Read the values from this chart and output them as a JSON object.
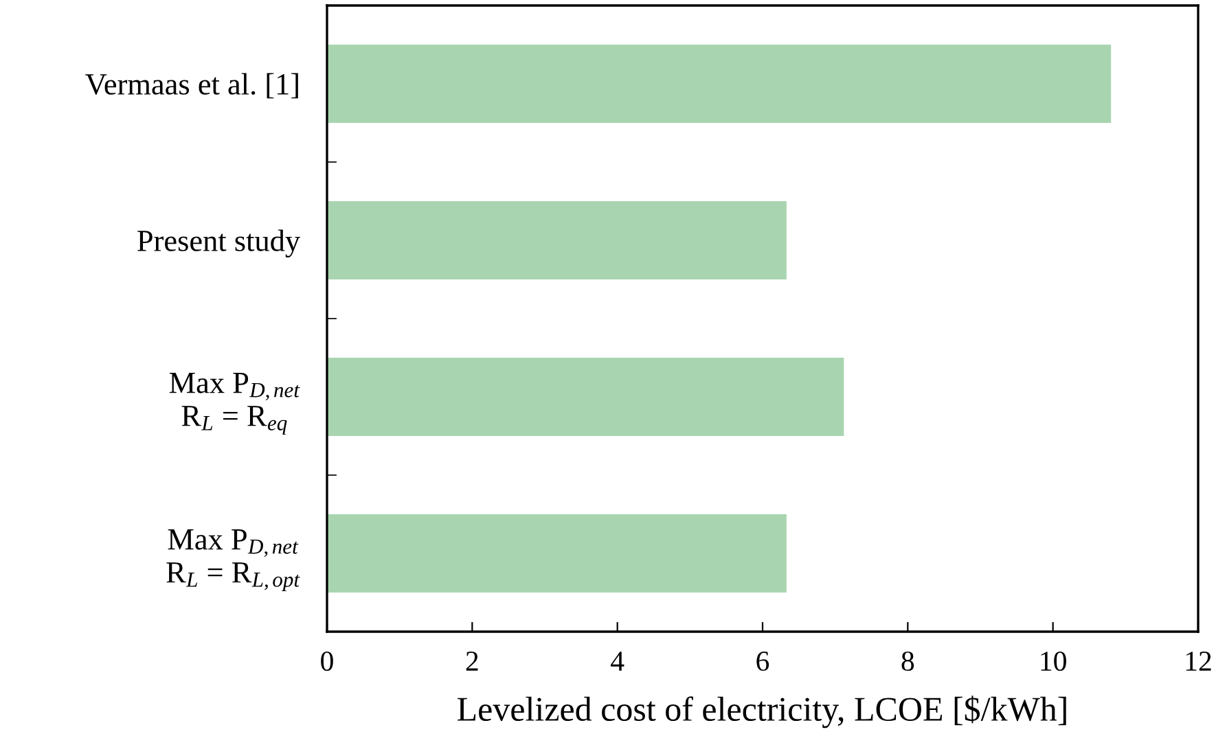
{
  "chart_data": {
    "type": "bar",
    "orientation": "horizontal",
    "categories": [
      "Vermaas et al. [1]",
      "Present study",
      "Max P$_{D,net}$\nR$_{L}$ = R$_{eq}$",
      "Max P$_{D,net}$\nR$_{L}$ = R$_{L,opt}$"
    ],
    "values": [
      10.8,
      6.33,
      7.12,
      6.33
    ],
    "color": "#a8d5b0",
    "xlabel": "Levelized cost of electricity, LCOE [$/kWh]",
    "xlim": [
      0,
      12
    ],
    "xticks": [
      0,
      2,
      4,
      6,
      8,
      10,
      12
    ],
    "grid": false,
    "legend": false
  }
}
